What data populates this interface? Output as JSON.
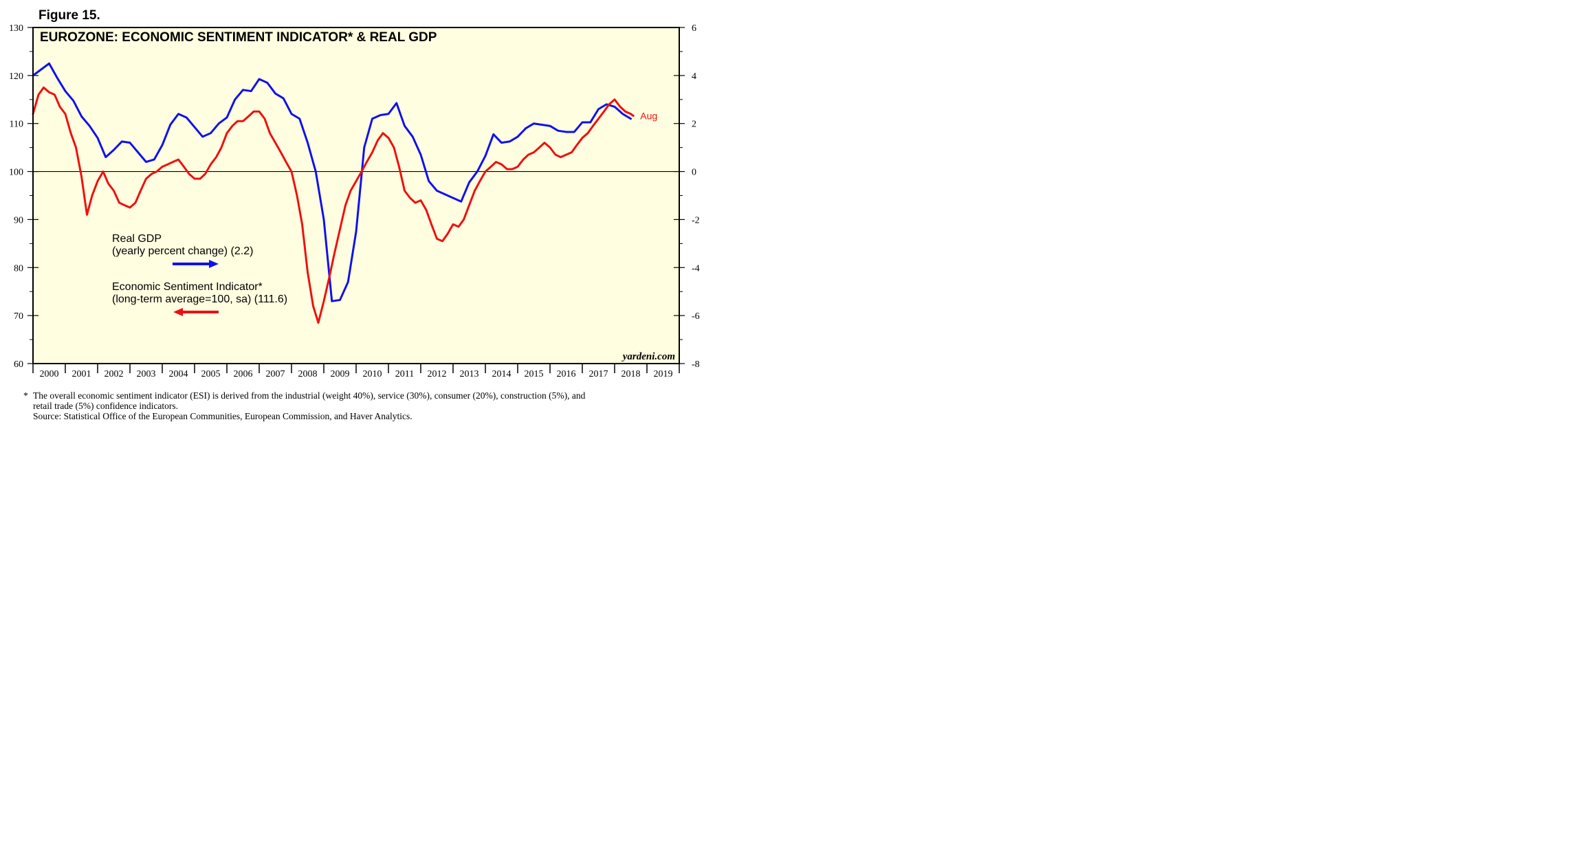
{
  "figure_label": "Figure 15.",
  "chart_data": {
    "type": "line",
    "title": "EUROZONE: ECONOMIC SENTIMENT INDICATOR* & REAL GDP",
    "watermark": "yardeni.com",
    "x_tick_labels": [
      "2000",
      "2001",
      "2002",
      "2003",
      "2004",
      "2005",
      "2006",
      "2007",
      "2008",
      "2009",
      "2010",
      "2011",
      "2012",
      "2013",
      "2014",
      "2015",
      "2016",
      "2017",
      "2018",
      "2019"
    ],
    "x_range": [
      2000.0,
      2020.0
    ],
    "left_axis": {
      "range": [
        60,
        130
      ],
      "ticks": [
        60,
        70,
        80,
        90,
        100,
        110,
        120,
        130
      ]
    },
    "right_axis": {
      "range": [
        -8,
        6
      ],
      "ticks": [
        -8,
        -6,
        -4,
        -2,
        0,
        2,
        4,
        6
      ]
    },
    "reference_line": {
      "axis": "left",
      "value": 100
    },
    "colors": {
      "background": "#FFFEE0",
      "gdp": "#1010EE",
      "esi": "#EE1010",
      "aug_label": "#EE1010"
    },
    "series": [
      {
        "name": "Real GDP",
        "legend_line1": "Real GDP",
        "legend_line2": "(yearly percent change) (2.2)",
        "axis": "right",
        "color": "#1010EE",
        "arrow": "right",
        "points": [
          [
            2000.0,
            4.0
          ],
          [
            2000.25,
            4.25
          ],
          [
            2000.5,
            4.5
          ],
          [
            2000.75,
            3.9
          ],
          [
            2001.0,
            3.35
          ],
          [
            2001.25,
            2.95
          ],
          [
            2001.5,
            2.3
          ],
          [
            2001.75,
            1.9
          ],
          [
            2002.0,
            1.4
          ],
          [
            2002.25,
            0.6
          ],
          [
            2002.5,
            0.9
          ],
          [
            2002.75,
            1.25
          ],
          [
            2003.0,
            1.2
          ],
          [
            2003.25,
            0.8
          ],
          [
            2003.5,
            0.4
          ],
          [
            2003.75,
            0.5
          ],
          [
            2004.0,
            1.1
          ],
          [
            2004.25,
            1.95
          ],
          [
            2004.5,
            2.4
          ],
          [
            2004.75,
            2.25
          ],
          [
            2005.0,
            1.85
          ],
          [
            2005.25,
            1.45
          ],
          [
            2005.5,
            1.6
          ],
          [
            2005.75,
            2.0
          ],
          [
            2006.0,
            2.25
          ],
          [
            2006.25,
            3.0
          ],
          [
            2006.5,
            3.4
          ],
          [
            2006.75,
            3.35
          ],
          [
            2007.0,
            3.85
          ],
          [
            2007.25,
            3.7
          ],
          [
            2007.5,
            3.25
          ],
          [
            2007.75,
            3.05
          ],
          [
            2008.0,
            2.4
          ],
          [
            2008.25,
            2.2
          ],
          [
            2008.5,
            1.2
          ],
          [
            2008.75,
            0.0
          ],
          [
            2009.0,
            -2.0
          ],
          [
            2009.25,
            -5.4
          ],
          [
            2009.5,
            -5.35
          ],
          [
            2009.75,
            -4.6
          ],
          [
            2010.0,
            -2.5
          ],
          [
            2010.25,
            1.0
          ],
          [
            2010.5,
            2.2
          ],
          [
            2010.75,
            2.35
          ],
          [
            2011.0,
            2.4
          ],
          [
            2011.25,
            2.85
          ],
          [
            2011.5,
            1.9
          ],
          [
            2011.75,
            1.45
          ],
          [
            2012.0,
            0.7
          ],
          [
            2012.25,
            -0.4
          ],
          [
            2012.5,
            -0.8
          ],
          [
            2012.75,
            -0.95
          ],
          [
            2013.0,
            -1.1
          ],
          [
            2013.25,
            -1.25
          ],
          [
            2013.5,
            -0.45
          ],
          [
            2013.75,
            0.0
          ],
          [
            2014.0,
            0.65
          ],
          [
            2014.25,
            1.55
          ],
          [
            2014.5,
            1.2
          ],
          [
            2014.75,
            1.25
          ],
          [
            2015.0,
            1.45
          ],
          [
            2015.25,
            1.8
          ],
          [
            2015.5,
            2.0
          ],
          [
            2015.75,
            1.95
          ],
          [
            2016.0,
            1.9
          ],
          [
            2016.25,
            1.7
          ],
          [
            2016.5,
            1.65
          ],
          [
            2016.75,
            1.65
          ],
          [
            2017.0,
            2.05
          ],
          [
            2017.25,
            2.05
          ],
          [
            2017.5,
            2.6
          ],
          [
            2017.75,
            2.8
          ],
          [
            2018.0,
            2.7
          ],
          [
            2018.25,
            2.4
          ],
          [
            2018.5,
            2.2
          ]
        ]
      },
      {
        "name": "Economic Sentiment Indicator*",
        "legend_line1": "Economic Sentiment Indicator*",
        "legend_line2": "(long-term average=100, sa) (111.6)",
        "axis": "left",
        "color": "#EE1010",
        "arrow": "left",
        "last_label": "Aug",
        "points": [
          [
            2000.0,
            112
          ],
          [
            2000.17,
            116
          ],
          [
            2000.33,
            117.5
          ],
          [
            2000.5,
            116.5
          ],
          [
            2000.67,
            116
          ],
          [
            2000.83,
            113.5
          ],
          [
            2001.0,
            112
          ],
          [
            2001.17,
            108
          ],
          [
            2001.33,
            105
          ],
          [
            2001.5,
            99
          ],
          [
            2001.67,
            91
          ],
          [
            2001.83,
            95
          ],
          [
            2002.0,
            98
          ],
          [
            2002.17,
            100
          ],
          [
            2002.33,
            97.5
          ],
          [
            2002.5,
            96
          ],
          [
            2002.67,
            93.5
          ],
          [
            2002.83,
            93
          ],
          [
            2003.0,
            92.5
          ],
          [
            2003.17,
            93.5
          ],
          [
            2003.33,
            96
          ],
          [
            2003.5,
            98.5
          ],
          [
            2003.67,
            99.5
          ],
          [
            2003.83,
            100
          ],
          [
            2004.0,
            101
          ],
          [
            2004.17,
            101.5
          ],
          [
            2004.33,
            102
          ],
          [
            2004.5,
            102.5
          ],
          [
            2004.67,
            101
          ],
          [
            2004.83,
            99.5
          ],
          [
            2005.0,
            98.5
          ],
          [
            2005.17,
            98.5
          ],
          [
            2005.33,
            99.5
          ],
          [
            2005.5,
            101.5
          ],
          [
            2005.67,
            103
          ],
          [
            2005.83,
            105
          ],
          [
            2006.0,
            108
          ],
          [
            2006.17,
            109.5
          ],
          [
            2006.33,
            110.5
          ],
          [
            2006.5,
            110.5
          ],
          [
            2006.67,
            111.5
          ],
          [
            2006.83,
            112.5
          ],
          [
            2007.0,
            112.5
          ],
          [
            2007.17,
            111
          ],
          [
            2007.33,
            108
          ],
          [
            2007.5,
            106
          ],
          [
            2007.67,
            104
          ],
          [
            2007.83,
            102
          ],
          [
            2008.0,
            100
          ],
          [
            2008.17,
            95
          ],
          [
            2008.33,
            89
          ],
          [
            2008.5,
            79
          ],
          [
            2008.67,
            72
          ],
          [
            2008.83,
            68.5
          ],
          [
            2009.0,
            73
          ],
          [
            2009.17,
            78
          ],
          [
            2009.33,
            83
          ],
          [
            2009.5,
            88
          ],
          [
            2009.67,
            93
          ],
          [
            2009.83,
            96
          ],
          [
            2010.0,
            98
          ],
          [
            2010.17,
            100
          ],
          [
            2010.33,
            102
          ],
          [
            2010.5,
            104
          ],
          [
            2010.67,
            106.5
          ],
          [
            2010.83,
            108
          ],
          [
            2011.0,
            107
          ],
          [
            2011.17,
            105
          ],
          [
            2011.33,
            101
          ],
          [
            2011.5,
            96
          ],
          [
            2011.67,
            94.5
          ],
          [
            2011.83,
            93.5
          ],
          [
            2012.0,
            94
          ],
          [
            2012.17,
            92
          ],
          [
            2012.33,
            89
          ],
          [
            2012.5,
            86
          ],
          [
            2012.67,
            85.5
          ],
          [
            2012.83,
            87
          ],
          [
            2013.0,
            89
          ],
          [
            2013.17,
            88.5
          ],
          [
            2013.33,
            90
          ],
          [
            2013.5,
            93
          ],
          [
            2013.67,
            96
          ],
          [
            2013.83,
            98
          ],
          [
            2014.0,
            100
          ],
          [
            2014.17,
            101
          ],
          [
            2014.33,
            102
          ],
          [
            2014.5,
            101.5
          ],
          [
            2014.67,
            100.5
          ],
          [
            2014.83,
            100.5
          ],
          [
            2015.0,
            101
          ],
          [
            2015.17,
            102.5
          ],
          [
            2015.33,
            103.5
          ],
          [
            2015.5,
            104
          ],
          [
            2015.67,
            105
          ],
          [
            2015.83,
            106
          ],
          [
            2016.0,
            105
          ],
          [
            2016.17,
            103.5
          ],
          [
            2016.33,
            103
          ],
          [
            2016.5,
            103.5
          ],
          [
            2016.67,
            104
          ],
          [
            2016.83,
            105.5
          ],
          [
            2017.0,
            107
          ],
          [
            2017.17,
            108
          ],
          [
            2017.33,
            109.5
          ],
          [
            2017.5,
            111
          ],
          [
            2017.67,
            112.5
          ],
          [
            2017.83,
            114
          ],
          [
            2018.0,
            115
          ],
          [
            2018.17,
            113.5
          ],
          [
            2018.33,
            112.5
          ],
          [
            2018.5,
            112
          ],
          [
            2018.58,
            111.6
          ]
        ]
      }
    ]
  },
  "footnote": {
    "marker": "*",
    "line1": "The overall economic sentiment indicator (ESI) is derived from the industrial (weight 40%), service (30%), consumer (20%), construction (5%), and",
    "line2": "retail trade (5%) confidence indicators.",
    "source": "Source: Statistical Office of the European Communities, European Commission, and Haver Analytics."
  }
}
